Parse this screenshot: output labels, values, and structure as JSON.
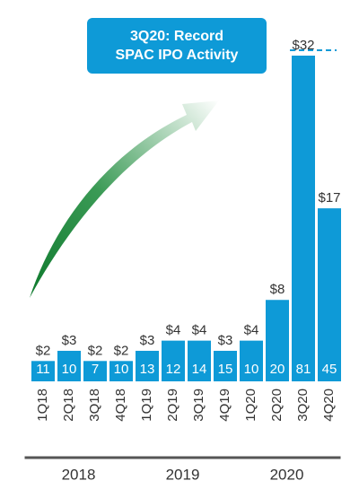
{
  "chart_data": {
    "type": "bar",
    "annotation": [
      "3Q20: Record",
      "SPAC IPO Activity"
    ],
    "categories": [
      "1Q18",
      "2Q18",
      "3Q18",
      "4Q18",
      "1Q19",
      "2Q19",
      "3Q19",
      "4Q19",
      "1Q20",
      "2Q20",
      "3Q20",
      "4Q20"
    ],
    "values": [
      2,
      3,
      2,
      2,
      3,
      4,
      4,
      3,
      4,
      8,
      32,
      17
    ],
    "value_labels": [
      "$2",
      "$3",
      "$2",
      "$2",
      "$3",
      "$4",
      "$4",
      "$3",
      "$4",
      "$8",
      "$32",
      "$17"
    ],
    "counts": [
      11,
      10,
      7,
      10,
      13,
      12,
      14,
      15,
      10,
      20,
      81,
      45
    ],
    "groups": [
      "2018",
      "2019",
      "2020"
    ],
    "color": "#0e9ad7"
  }
}
